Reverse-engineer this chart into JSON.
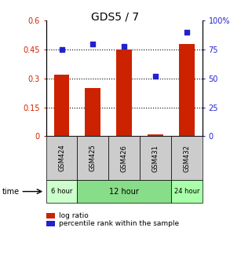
{
  "title": "GDS5 / 7",
  "samples": [
    "GSM424",
    "GSM425",
    "GSM426",
    "GSM431",
    "GSM432"
  ],
  "log_ratio": [
    0.32,
    0.25,
    0.45,
    0.01,
    0.48
  ],
  "percentile_rank": [
    75,
    80,
    78,
    52,
    90
  ],
  "bar_color": "#cc2200",
  "dot_color": "#2222cc",
  "left_ylim": [
    0,
    0.6
  ],
  "right_ylim": [
    0,
    100
  ],
  "left_yticks": [
    0,
    0.15,
    0.3,
    0.45,
    0.6
  ],
  "left_yticklabels": [
    "0",
    "0.15",
    "0.3",
    "0.45",
    "0.6"
  ],
  "right_yticks": [
    0,
    25,
    50,
    75,
    100
  ],
  "right_yticklabels": [
    "0",
    "25",
    "50",
    "75",
    "100%"
  ],
  "hlines": [
    0.15,
    0.3,
    0.45
  ],
  "time_groups": [
    {
      "label": "6 hour",
      "samples": [
        "GSM424"
      ],
      "color": "#ccffcc"
    },
    {
      "label": "12 hour",
      "samples": [
        "GSM425",
        "GSM426",
        "GSM431"
      ],
      "color": "#88dd88"
    },
    {
      "label": "24 hour",
      "samples": [
        "GSM432"
      ],
      "color": "#aaffaa"
    }
  ],
  "legend_bar_label": "log ratio",
  "legend_dot_label": "percentile rank within the sample",
  "time_label": "time",
  "bg_color": "#ffffff",
  "plot_bg": "#ffffff",
  "sample_box_color": "#cccccc"
}
